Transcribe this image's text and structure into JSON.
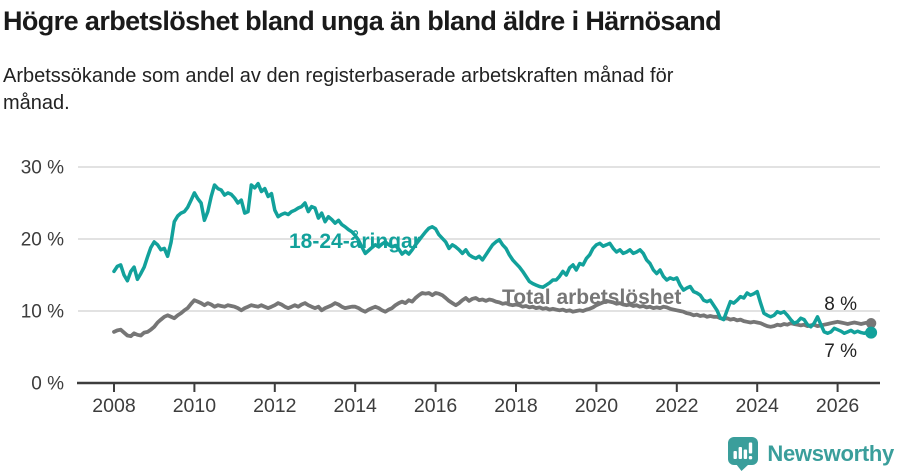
{
  "header": {
    "title": "Högre arbetslöshet bland unga än bland äldre i Härnösand",
    "subtitle_line1": "Arbetssökande som andel av den registerbaserade arbetskraften månad för",
    "subtitle_line2": "månad."
  },
  "chart_data": {
    "type": "line",
    "title": "Arbetssökande som andel av den registerbaserade arbetskraften månad för månad",
    "frequency": "monthly",
    "x_start_year": 2008,
    "x_tick_years": [
      2008,
      2010,
      2012,
      2014,
      2016,
      2018,
      2020,
      2022,
      2024,
      2026
    ],
    "y_ticks": [
      {
        "value": 0,
        "label": "0 %"
      },
      {
        "value": 10,
        "label": "10 %"
      },
      {
        "value": 20,
        "label": "20 %"
      },
      {
        "value": 30,
        "label": "30 %"
      }
    ],
    "ylim": [
      0,
      30
    ],
    "grid": "horizontal",
    "colors": {
      "youth": "#12a19b",
      "total": "#767676",
      "axis": "#3d3d3d",
      "gridline": "#d9d9d9",
      "end_label": "#222222"
    },
    "series": [
      {
        "name": "Total arbetslöshet",
        "color": "#767676",
        "end_label": "8 %",
        "values": [
          7.1,
          7.3,
          7.4,
          7.0,
          6.6,
          6.5,
          6.9,
          6.7,
          6.6,
          7.0,
          7.1,
          7.4,
          7.8,
          8.4,
          8.8,
          9.2,
          9.4,
          9.2,
          9.0,
          9.4,
          9.7,
          10.1,
          10.4,
          11.0,
          11.5,
          11.3,
          11.1,
          10.8,
          11.1,
          10.9,
          10.6,
          10.8,
          10.7,
          10.6,
          10.8,
          10.7,
          10.6,
          10.4,
          10.1,
          10.4,
          10.6,
          10.8,
          10.7,
          10.6,
          10.8,
          10.6,
          10.4,
          10.6,
          10.8,
          11.1,
          10.9,
          10.6,
          10.4,
          10.6,
          10.8,
          10.6,
          10.9,
          11.1,
          10.8,
          10.6,
          10.4,
          10.6,
          10.1,
          10.4,
          10.6,
          10.8,
          11.1,
          10.9,
          10.6,
          10.4,
          10.5,
          10.6,
          10.6,
          10.4,
          10.1,
          9.9,
          10.2,
          10.4,
          10.6,
          10.4,
          10.1,
          9.9,
          10.2,
          10.4,
          10.8,
          11.1,
          11.3,
          11.1,
          11.5,
          11.3,
          11.8,
          12.2,
          12.5,
          12.4,
          12.5,
          12.2,
          12.5,
          12.4,
          12.2,
          11.8,
          11.4,
          11.1,
          10.8,
          11.1,
          11.5,
          11.8,
          11.4,
          11.7,
          11.8,
          11.5,
          11.6,
          11.4,
          11.6,
          11.5,
          11.3,
          11.2,
          11.0,
          11.1,
          10.9,
          10.8,
          10.9,
          10.8,
          10.6,
          10.7,
          10.5,
          10.6,
          10.4,
          10.5,
          10.3,
          10.4,
          10.2,
          10.3,
          10.2,
          10.1,
          10.2,
          10.0,
          10.1,
          9.9,
          10.0,
          10.1,
          10.0,
          10.2,
          10.3,
          10.5,
          10.8,
          11.0,
          11.2,
          11.4,
          11.3,
          11.2,
          11.0,
          11.1,
          10.9,
          10.8,
          10.9,
          10.7,
          10.8,
          10.6,
          10.7,
          10.5,
          10.6,
          10.4,
          10.5,
          10.4,
          10.6,
          10.5,
          10.3,
          10.2,
          10.1,
          10.0,
          9.9,
          9.7,
          9.6,
          9.4,
          9.5,
          9.3,
          9.4,
          9.2,
          9.3,
          9.2,
          9.2,
          9.0,
          8.9,
          9.0,
          8.8,
          8.9,
          8.7,
          8.8,
          8.6,
          8.5,
          8.4,
          8.5,
          8.4,
          8.3,
          8.1,
          7.9,
          7.8,
          7.9,
          8.1,
          8.0,
          8.2,
          8.1,
          8.3,
          8.2,
          8.1,
          8.0,
          8.1,
          7.9,
          8.0,
          8.1,
          7.9,
          8.0,
          8.1,
          8.2,
          8.3,
          8.4,
          8.5,
          8.4,
          8.3,
          8.2,
          8.3,
          8.4,
          8.3,
          8.2,
          8.3,
          8.4,
          8.3
        ]
      },
      {
        "name": "18-24-åringar",
        "color": "#12a19b",
        "end_label": "7 %",
        "values": [
          15.5,
          16.2,
          16.4,
          15.0,
          14.2,
          15.5,
          16.1,
          14.4,
          15.2,
          16.1,
          17.5,
          18.8,
          19.6,
          19.2,
          18.5,
          18.7,
          17.6,
          19.5,
          22.4,
          23.2,
          23.6,
          23.8,
          24.4,
          25.4,
          26.4,
          25.6,
          25.0,
          22.6,
          23.8,
          25.9,
          27.5,
          27.0,
          26.8,
          26.1,
          26.4,
          26.2,
          25.7,
          25.0,
          25.4,
          23.6,
          23.8,
          27.5,
          27.1,
          27.7,
          26.6,
          27.0,
          25.9,
          26.3,
          24.0,
          23.1,
          23.4,
          23.6,
          23.4,
          23.8,
          24.0,
          24.3,
          24.5,
          25.0,
          23.8,
          24.5,
          24.3,
          22.9,
          23.6,
          22.4,
          23.1,
          22.7,
          22.2,
          22.6,
          22.0,
          21.7,
          21.3,
          21.0,
          20.5,
          19.8,
          18.9,
          18.0,
          18.4,
          18.8,
          19.2,
          18.9,
          19.3,
          19.6,
          19.2,
          18.9,
          19.1,
          18.6,
          17.9,
          18.3,
          17.9,
          18.5,
          19.2,
          19.8,
          20.4,
          21.0,
          21.5,
          21.7,
          21.4,
          20.6,
          20.1,
          19.6,
          18.7,
          19.2,
          18.9,
          18.5,
          18.0,
          18.5,
          17.8,
          17.5,
          17.3,
          17.6,
          17.1,
          17.8,
          18.5,
          19.2,
          19.6,
          19.9,
          19.2,
          18.7,
          17.8,
          17.1,
          16.6,
          16.1,
          15.5,
          14.8,
          14.1,
          13.8,
          13.6,
          13.4,
          13.3,
          13.6,
          13.9,
          14.3,
          14.3,
          14.8,
          15.5,
          15.0,
          16.0,
          16.4,
          15.7,
          16.6,
          16.4,
          17.3,
          17.8,
          18.7,
          19.2,
          19.4,
          19.0,
          19.2,
          19.4,
          18.7,
          18.2,
          18.5,
          18.0,
          18.2,
          18.5,
          18.0,
          18.2,
          18.5,
          18.0,
          17.1,
          16.6,
          15.7,
          15.2,
          15.7,
          14.8,
          14.3,
          14.6,
          14.4,
          14.6,
          13.6,
          12.9,
          13.2,
          13.4,
          12.7,
          12.5,
          12.2,
          11.5,
          11.3,
          11.5,
          10.8,
          10.1,
          9.0,
          8.8,
          10.1,
          11.3,
          11.1,
          11.5,
          12.0,
          11.8,
          12.5,
          12.2,
          12.4,
          12.7,
          11.1,
          9.7,
          9.4,
          9.2,
          9.4,
          9.9,
          9.7,
          9.9,
          9.4,
          8.8,
          8.3,
          8.5,
          9.0,
          8.8,
          8.1,
          7.8,
          8.3,
          9.2,
          8.1,
          7.1,
          6.9,
          7.1,
          7.6,
          7.4,
          7.2,
          6.9,
          7.1,
          7.3,
          7.0,
          7.2,
          7.0,
          6.9,
          7.1,
          7.0
        ]
      }
    ]
  },
  "footer": {
    "brand": "Newsworthy"
  }
}
